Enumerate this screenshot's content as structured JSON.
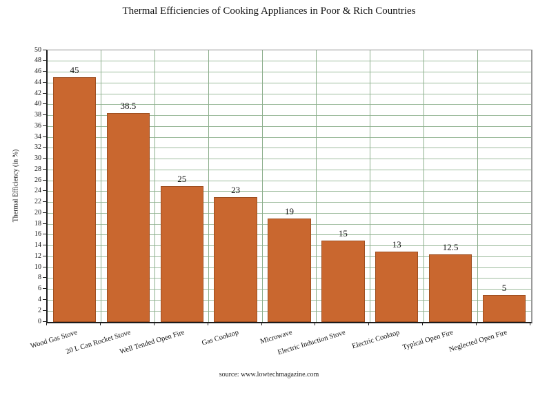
{
  "chart_data": {
    "type": "bar",
    "title": "Thermal Efficiencies of Cooking Appliances in Poor & Rich Countries",
    "categories": [
      "Wood Gas Stove",
      "20 L Can Rocket Stove",
      "Well Tended Open Fire",
      "Gas Cooktop",
      "Microwave",
      "Electric Induction Stove",
      "Electric Cooktop",
      "Typical Open Fire",
      "Neglected Open Fire"
    ],
    "values": [
      45,
      38.5,
      25,
      23,
      19,
      15,
      13,
      12.5,
      5
    ],
    "xlabel": "",
    "ylabel": "Thermal Efficiency (in %)",
    "ylim": [
      0,
      50
    ],
    "ytick_step": 2,
    "grid": "horizontal lines every 2 units and vertical lines at category boundaries",
    "legend": "none",
    "data_labels": "above each bar",
    "source": "source: www.lowtechmagazine.com",
    "colors": {
      "bar_fill": "#C9672F",
      "bar_border": "#9E4E20",
      "hgrid": "#9CBB9C",
      "vgrid": "#8BAE8B",
      "axis": "#1c1c1c",
      "text": "#111111"
    }
  }
}
